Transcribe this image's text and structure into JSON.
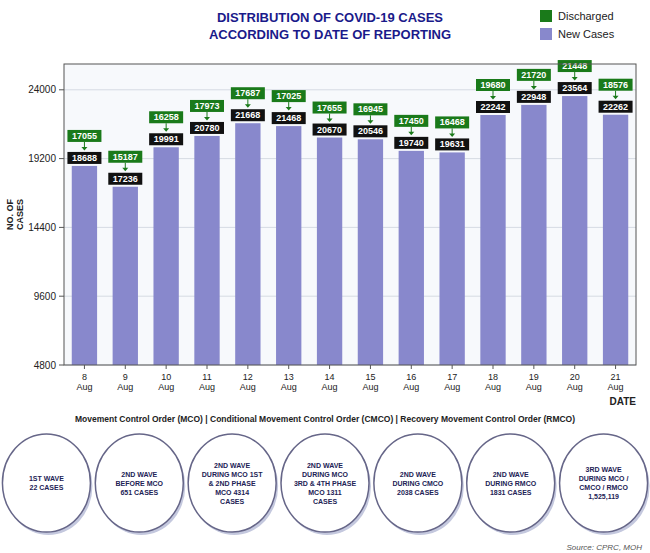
{
  "chart_data": {
    "type": "bar",
    "title": "DISTRIBUTION OF COVID-19 CASES\nACCORDING TO DATE OF REPORTING",
    "x_label": "DATE",
    "y_label": "NO. OF\nCASES",
    "categories": [
      "8\nAug",
      "9\nAug",
      "10\nAug",
      "11\nAug",
      "12\nAug",
      "13\nAug",
      "14\nAug",
      "15\nAug",
      "16\nAug",
      "17\nAug",
      "18\nAug",
      "19\nAug",
      "20\nAug",
      "21\nAug"
    ],
    "series": [
      {
        "name": "New Cases",
        "type": "bar",
        "color": "#8888cc",
        "values": [
          18688,
          17236,
          19991,
          20780,
          21668,
          21468,
          20670,
          20546,
          19740,
          19631,
          22242,
          22948,
          23564,
          22262
        ]
      },
      {
        "name": "Discharged",
        "type": "label",
        "color": "#1a7a1a",
        "values": [
          17055,
          15187,
          16258,
          17973,
          17687,
          17025,
          17655,
          16945,
          17450,
          16468,
          19680,
          21720,
          21448,
          18576
        ]
      }
    ],
    "ylim": [
      4800,
      25800
    ],
    "yticks": [
      4800,
      9600,
      14400,
      19200,
      24000
    ],
    "grid": true,
    "legend": "upper right",
    "data_labels": true,
    "annotations": [
      "Movement Control Order (MCO)  |  Conditional Movement Control Order (CMCO)  |  Recovery Movement Control Order (RMCO)",
      "1ST WAVE\n22 CASES",
      "2ND WAVE\nBEFORE MCO\n651 CASES",
      "2ND WAVE\nDURING MCO 1ST\n& 2ND PHASE\nMCO 4314\nCASES",
      "2ND WAVE\nDURING MCO\n3RD & 4TH PHASE\nMCO 1311\nCASES",
      "2ND WAVE\nDURING CMCO\n2038 CASES",
      "2ND WAVE\nDURING RMCO\n1831 CASES",
      "3RD WAVE\nDURING MCO /\nCMCO / RMCO\n1,525,119",
      "Source: CPRC, MOH"
    ]
  }
}
